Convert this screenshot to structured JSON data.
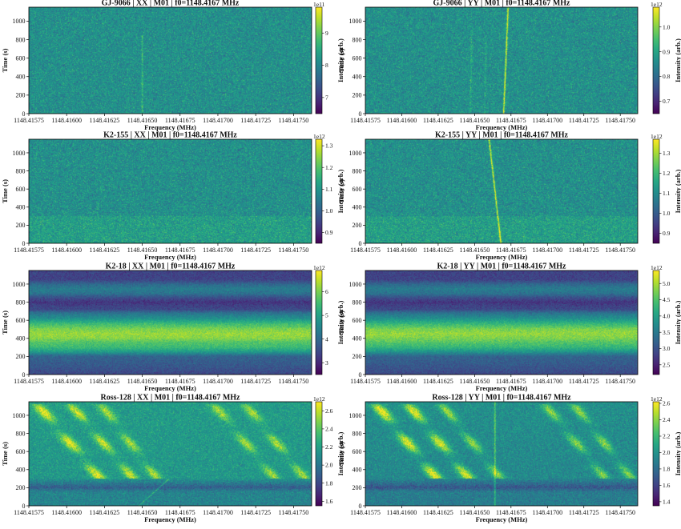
{
  "chart_data": [
    {
      "type": "heatmap",
      "title": "GJ-9066 | XX | M01 | f0=1148.4167 MHz",
      "xlabel": "Frequency (MHz)",
      "ylabel": "Time (s)",
      "colorbar_label": "Intensity (arb.)",
      "colorbar_exponent": "1e11",
      "colormap": "viridis",
      "xlim": [
        1148.41575,
        1148.41762
      ],
      "ylim": [
        0,
        1150
      ],
      "x_ticks": [
        "1148.41575",
        "1148.41600",
        "1148.41625",
        "1148.41650",
        "1148.41675",
        "1148.41700",
        "1148.41725",
        "1148.41750"
      ],
      "y_ticks": [
        "0",
        "200",
        "400",
        "600",
        "800",
        "1000"
      ],
      "colorbar_range": [
        6.5,
        9.8
      ],
      "colorbar_ticks": [
        "7",
        "8",
        "9"
      ],
      "features": {
        "noise_mean": 0.5,
        "noise_sd": 0.15,
        "lines": [
          {
            "x0": 1148.4165,
            "x1": 1148.4165,
            "y0": 0,
            "y1": 850,
            "strength": 0.18
          }
        ]
      }
    },
    {
      "type": "heatmap",
      "title": "GJ-9066 | YY | M01 | f0=1148.4167 MHz",
      "xlabel": "Frequency (MHz)",
      "ylabel": "Time (s)",
      "colorbar_label": "Intensity (arb.)",
      "colorbar_exponent": "1e12",
      "colormap": "viridis",
      "xlim": [
        1148.41575,
        1148.41762
      ],
      "ylim": [
        0,
        1150
      ],
      "x_ticks": [
        "1148.41575",
        "1148.41600",
        "1148.41625",
        "1148.41650",
        "1148.41675",
        "1148.41700",
        "1148.41725",
        "1148.41750"
      ],
      "y_ticks": [
        "0",
        "200",
        "400",
        "600",
        "800",
        "1000"
      ],
      "colorbar_range": [
        0.65,
        1.08
      ],
      "colorbar_ticks": [
        "0.7",
        "0.8",
        "0.9",
        "1.0"
      ],
      "features": {
        "noise_mean": 0.5,
        "noise_sd": 0.15,
        "lines": [
          {
            "x0": 1148.4167,
            "x1": 1148.41673,
            "y0": 0,
            "y1": 1150,
            "strength": 0.5
          },
          {
            "x0": 1148.41647,
            "x1": 1148.41648,
            "y0": 0,
            "y1": 900,
            "strength": 0.12
          },
          {
            "x0": 1148.41657,
            "x1": 1148.41658,
            "y0": 0,
            "y1": 800,
            "strength": 0.1
          }
        ]
      }
    },
    {
      "type": "heatmap",
      "title": "K2-155 | XX | M01 | f0=1148.4167 MHz",
      "xlabel": "Frequency (MHz)",
      "ylabel": "Time (s)",
      "colorbar_label": "Intensity (arb.)",
      "colorbar_exponent": "1e12",
      "colormap": "viridis",
      "xlim": [
        1148.41575,
        1148.41762
      ],
      "ylim": [
        0,
        1150
      ],
      "x_ticks": [
        "1148.41575",
        "1148.41600",
        "1148.41625",
        "1148.41650",
        "1148.41675",
        "1148.41700",
        "1148.41725",
        "1148.41750"
      ],
      "y_ticks": [
        "0",
        "200",
        "400",
        "600",
        "800",
        "1000"
      ],
      "colorbar_range": [
        0.85,
        1.33
      ],
      "colorbar_ticks": [
        "0.9",
        "1.0",
        "1.1",
        "1.2",
        "1.3"
      ],
      "features": {
        "noise_mean": 0.5,
        "noise_sd": 0.15,
        "lines": [],
        "bands": [
          {
            "y0": 0,
            "y1": 300,
            "add": 0.06
          }
        ]
      }
    },
    {
      "type": "heatmap",
      "title": "K2-155 | YY | M01 | f0=1148.4167 MHz",
      "xlabel": "Frequency (MHz)",
      "ylabel": "Time (s)",
      "colorbar_label": "Intensity (arb.)",
      "colorbar_exponent": "1e12",
      "colormap": "viridis",
      "xlim": [
        1148.41575,
        1148.41762
      ],
      "ylim": [
        0,
        1150
      ],
      "x_ticks": [
        "1148.41575",
        "1148.41600",
        "1148.41625",
        "1148.41650",
        "1148.41675",
        "1148.41700",
        "1148.41725",
        "1148.41750"
      ],
      "y_ticks": [
        "0",
        "200",
        "400",
        "600",
        "800",
        "1000"
      ],
      "colorbar_range": [
        0.85,
        1.37
      ],
      "colorbar_ticks": [
        "0.9",
        "1.0",
        "1.1",
        "1.2",
        "1.3"
      ],
      "features": {
        "noise_mean": 0.5,
        "noise_sd": 0.15,
        "lines": [
          {
            "x0": 1148.41668,
            "x1": 1148.4166,
            "y0": 0,
            "y1": 1150,
            "strength": 0.5
          }
        ],
        "bands": [
          {
            "y0": 0,
            "y1": 300,
            "add": 0.06
          }
        ]
      }
    },
    {
      "type": "heatmap",
      "title": "K2-18 | XX | M01 | f0=1148.4167 MHz",
      "xlabel": "Frequency (MHz)",
      "ylabel": "Time (s)",
      "colorbar_label": "Intensity (arb.)",
      "colorbar_exponent": "1e12",
      "colormap": "viridis",
      "xlim": [
        1148.41575,
        1148.41762
      ],
      "ylim": [
        0,
        1150
      ],
      "x_ticks": [
        "1148.41575",
        "1148.41600",
        "1148.41625",
        "1148.41650",
        "1148.41675",
        "1148.41700",
        "1148.41725",
        "1148.41750"
      ],
      "y_ticks": [
        "0",
        "200",
        "400",
        "600",
        "800",
        "1000"
      ],
      "colorbar_range": [
        2.5,
        6.9
      ],
      "colorbar_ticks": [
        "3",
        "4",
        "5",
        "6"
      ],
      "features": {
        "noise_mean": 0.1,
        "noise_sd": 0.08,
        "lines": [],
        "time_profile": [
          [
            0,
            0.12
          ],
          [
            100,
            0.18
          ],
          [
            200,
            0.22
          ],
          [
            250,
            0.45
          ],
          [
            300,
            0.58
          ],
          [
            350,
            0.62
          ],
          [
            400,
            0.72
          ],
          [
            450,
            0.75
          ],
          [
            500,
            0.7
          ],
          [
            560,
            0.58
          ],
          [
            620,
            0.4
          ],
          [
            680,
            0.28
          ],
          [
            720,
            0.12
          ],
          [
            760,
            0.1
          ],
          [
            800,
            0.05
          ],
          [
            850,
            0.14
          ],
          [
            900,
            0.28
          ],
          [
            950,
            0.32
          ],
          [
            1000,
            0.24
          ],
          [
            1050,
            0.1
          ],
          [
            1150,
            0.1
          ]
        ]
      }
    },
    {
      "type": "heatmap",
      "title": "K2-18 | YY | M01 | f0=1148.4167 MHz",
      "xlabel": "Frequency (MHz)",
      "ylabel": "Time (s)",
      "colorbar_label": "Intensity (arb.)",
      "colorbar_exponent": "1e12",
      "colormap": "viridis",
      "xlim": [
        1148.41575,
        1148.41762
      ],
      "ylim": [
        0,
        1150
      ],
      "x_ticks": [
        "1148.41575",
        "1148.41600",
        "1148.41625",
        "1148.41650",
        "1148.41675",
        "1148.41700",
        "1148.41725",
        "1148.41750"
      ],
      "y_ticks": [
        "0",
        "200",
        "400",
        "600",
        "800",
        "1000"
      ],
      "colorbar_range": [
        2.2,
        5.4
      ],
      "colorbar_ticks": [
        "2.5",
        "3.0",
        "3.5",
        "4.0",
        "4.5",
        "5.0"
      ],
      "features": {
        "noise_mean": 0.1,
        "noise_sd": 0.08,
        "lines": [],
        "time_profile": [
          [
            0,
            0.12
          ],
          [
            100,
            0.18
          ],
          [
            200,
            0.22
          ],
          [
            250,
            0.42
          ],
          [
            300,
            0.56
          ],
          [
            350,
            0.62
          ],
          [
            400,
            0.7
          ],
          [
            450,
            0.74
          ],
          [
            500,
            0.7
          ],
          [
            560,
            0.56
          ],
          [
            620,
            0.4
          ],
          [
            680,
            0.28
          ],
          [
            720,
            0.12
          ],
          [
            760,
            0.1
          ],
          [
            800,
            0.05
          ],
          [
            850,
            0.14
          ],
          [
            900,
            0.28
          ],
          [
            950,
            0.32
          ],
          [
            1000,
            0.24
          ],
          [
            1050,
            0.1
          ],
          [
            1150,
            0.1
          ]
        ]
      }
    },
    {
      "type": "heatmap",
      "title": "Ross-128 | XX | M01 | f0=1148.4167 MHz",
      "xlabel": "Frequency (MHz)",
      "ylabel": "Time (s)",
      "colorbar_label": "Intensity (arb.)",
      "colorbar_exponent": "1e12",
      "colormap": "viridis",
      "xlim": [
        1148.41575,
        1148.41762
      ],
      "ylim": [
        0,
        1150
      ],
      "x_ticks": [
        "1148.41575",
        "1148.41600",
        "1148.41625",
        "1148.41650",
        "1148.41675",
        "1148.41700",
        "1148.41725",
        "1148.41750"
      ],
      "y_ticks": [
        "0",
        "200",
        "400",
        "600",
        "800",
        "1000"
      ],
      "colorbar_range": [
        1.55,
        2.7
      ],
      "colorbar_ticks": [
        "1.6",
        "1.8",
        "2.0",
        "2.2",
        "2.4",
        "2.6"
      ],
      "features": {
        "noise_mean": 0.25,
        "noise_sd": 0.12,
        "lines": [
          {
            "x0": 1148.41648,
            "x1": 1148.41668,
            "y0": 0,
            "y1": 300,
            "strength": 0.25
          }
        ],
        "time_profile": [
          [
            0,
            0.2
          ],
          [
            150,
            0.2
          ],
          [
            200,
            0.05
          ],
          [
            300,
            0.28
          ],
          [
            1150,
            0.3
          ]
        ],
        "streaks": [
          {
            "x_top": 1148.4158,
            "x_bottom": 1148.41622,
            "width": 4.5e-05,
            "y0": 300,
            "y1": 1130,
            "strength": 0.55
          },
          {
            "x_top": 1148.41602,
            "x_bottom": 1148.41644,
            "width": 4e-05,
            "y0": 300,
            "y1": 1130,
            "strength": 0.5
          },
          {
            "x_top": 1148.41622,
            "x_bottom": 1148.4166,
            "width": 4e-05,
            "y0": 300,
            "y1": 1130,
            "strength": 0.42
          },
          {
            "x_top": 1148.41697,
            "x_bottom": 1148.41738,
            "width": 4e-05,
            "y0": 300,
            "y1": 1130,
            "strength": 0.42
          },
          {
            "x_top": 1148.41718,
            "x_bottom": 1148.41758,
            "width": 4e-05,
            "y0": 300,
            "y1": 1130,
            "strength": 0.42
          }
        ]
      }
    },
    {
      "type": "heatmap",
      "title": "Ross-128 | YY | M01 | f0=1148.4167 MHz",
      "xlabel": "Frequency (MHz)",
      "ylabel": "Time (s)",
      "colorbar_label": "Intensity (arb.)",
      "colorbar_exponent": "1e12",
      "colormap": "viridis",
      "xlim": [
        1148.41575,
        1148.41762
      ],
      "ylim": [
        0,
        1150
      ],
      "x_ticks": [
        "1148.41575",
        "1148.41600",
        "1148.41625",
        "1148.41650",
        "1148.41675",
        "1148.41700",
        "1148.41725",
        "1148.41750"
      ],
      "y_ticks": [
        "0",
        "200",
        "400",
        "600",
        "800",
        "1000"
      ],
      "colorbar_range": [
        1.35,
        2.62
      ],
      "colorbar_ticks": [
        "1.4",
        "1.6",
        "1.8",
        "2.0",
        "2.2",
        "2.4",
        "2.6"
      ],
      "features": {
        "noise_mean": 0.22,
        "noise_sd": 0.12,
        "lines": [
          {
            "x0": 1148.41664,
            "x1": 1148.41664,
            "y0": 0,
            "y1": 1150,
            "strength": 0.3
          }
        ],
        "time_profile": [
          [
            0,
            0.2
          ],
          [
            150,
            0.2
          ],
          [
            200,
            0.05
          ],
          [
            300,
            0.25
          ],
          [
            1150,
            0.28
          ]
        ],
        "streaks": [
          {
            "x_top": 1148.41582,
            "x_bottom": 1148.41624,
            "width": 4.5e-05,
            "y0": 300,
            "y1": 1130,
            "strength": 0.65
          },
          {
            "x_top": 1148.41604,
            "x_bottom": 1148.41646,
            "width": 4.5e-05,
            "y0": 300,
            "y1": 1130,
            "strength": 0.6
          },
          {
            "x_top": 1148.41627,
            "x_bottom": 1148.41668,
            "width": 4e-05,
            "y0": 300,
            "y1": 1130,
            "strength": 0.45
          },
          {
            "x_top": 1148.41698,
            "x_bottom": 1148.4174,
            "width": 4e-05,
            "y0": 300,
            "y1": 1130,
            "strength": 0.42
          },
          {
            "x_top": 1148.41718,
            "x_bottom": 1148.41758,
            "width": 4e-05,
            "y0": 300,
            "y1": 1130,
            "strength": 0.42
          }
        ]
      }
    }
  ]
}
